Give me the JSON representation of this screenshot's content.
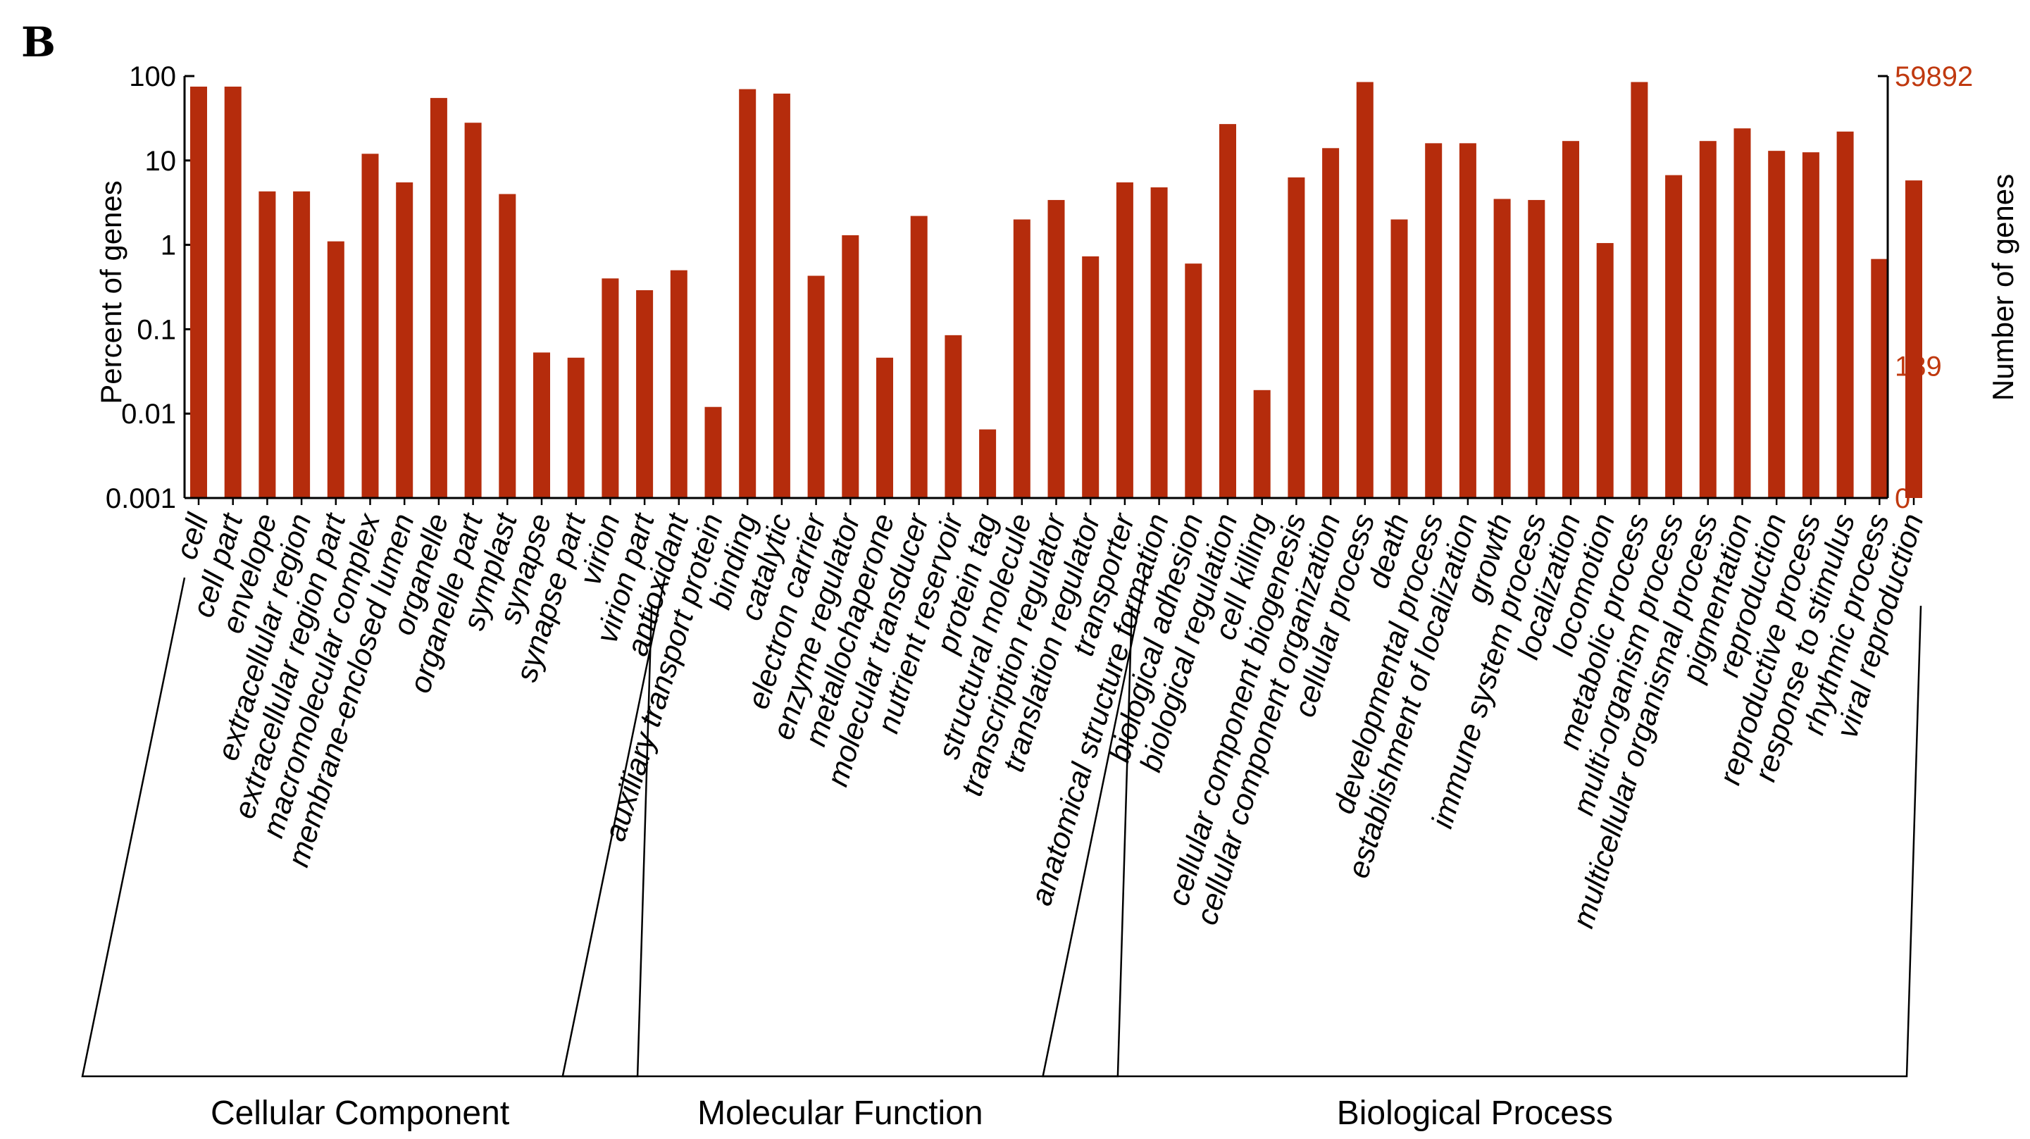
{
  "panel_label": "B",
  "chart_data": {
    "type": "bar",
    "y_scale": "log",
    "ylabel": "Percent of genes",
    "ylabel_right": "Number of genes",
    "ylim": [
      0.001,
      100
    ],
    "y_ticks": [
      "100",
      "10",
      "1",
      "0.1",
      "0.01",
      "0.001"
    ],
    "right_ticks": [
      "59892",
      "189",
      "0"
    ],
    "bar_color": "#b52c0c",
    "right_tick_color": "#c0390f",
    "categories": [
      "cell",
      "cell part",
      "envelope",
      "extracellular region",
      "extracellular region part",
      "macromolecular complex",
      "membrane-enclosed lumen",
      "organelle",
      "organelle part",
      "symplast",
      "synapse",
      "synapse part",
      "virion",
      "virion part",
      "antioxidant",
      "auxiliary transport protein",
      "binding",
      "catalytic",
      "electron carrier",
      "enzyme regulator",
      "metallochaperone",
      "molecular transducer",
      "nutrient reservoir",
      "protein tag",
      "structural molecule",
      "transcription regulator",
      "translation regulator",
      "transporter",
      "anatomical structure formation",
      "biological adhesion",
      "biological regulation",
      "cell killing",
      "cellular component biogenesis",
      "cellular component organization",
      "cellular process",
      "death",
      "developmental process",
      "establishment of localization",
      "growth",
      "immune system process",
      "localization",
      "locomotion",
      "metabolic process",
      "multi-organism process",
      "multicellular organismal process",
      "pigmentation",
      "reproduction",
      "reproductive process",
      "response to stimulus",
      "rhythmic process",
      "viral reproduction"
    ],
    "values": [
      75,
      75,
      4.3,
      4.3,
      1.1,
      12,
      5.5,
      55,
      28,
      4.0,
      0.053,
      0.046,
      0.4,
      0.29,
      0.5,
      0.012,
      70,
      62,
      0.43,
      1.3,
      0.046,
      2.2,
      0.085,
      0.0065,
      2.0,
      3.4,
      0.73,
      5.5,
      4.8,
      0.6,
      27,
      0.019,
      6.3,
      14,
      85,
      2.0,
      16,
      16,
      3.5,
      3.4,
      17,
      1.05,
      85,
      6.7,
      17,
      24,
      13,
      12.5,
      22,
      0.68,
      5.8
    ],
    "groups": [
      {
        "name": "Cellular Component",
        "start": 0,
        "end": 13
      },
      {
        "name": "Molecular Function",
        "start": 14,
        "end": 27
      },
      {
        "name": "Biological Process",
        "start": 28,
        "end": 50
      }
    ]
  }
}
